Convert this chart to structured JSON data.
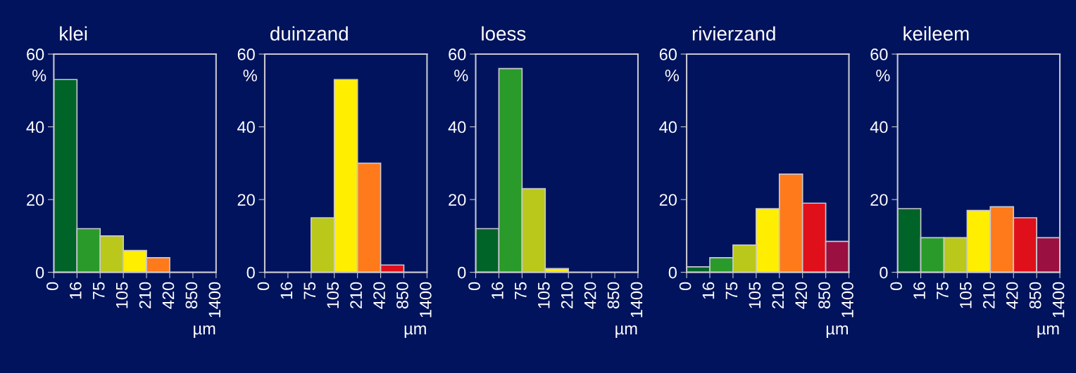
{
  "chart_data": [
    {
      "type": "bar",
      "title": "klei",
      "ylabel": "%",
      "xlabel": "µm",
      "categories": [
        "0",
        "16",
        "75",
        "105",
        "210",
        "420",
        "850",
        "1400"
      ],
      "values": [
        53,
        12,
        10,
        6,
        4,
        0,
        0,
        null
      ],
      "colors": [
        "#006428",
        "#2a9a2a",
        "#b9c81a",
        "#ffee00",
        "#ff7a1a",
        "#e0101a",
        "#9a1040",
        null
      ],
      "ylim": [
        0,
        60
      ],
      "yticks": [
        0,
        20,
        40,
        60
      ]
    },
    {
      "type": "bar",
      "title": "duinzand",
      "ylabel": "%",
      "xlabel": "µm",
      "categories": [
        "0",
        "16",
        "75",
        "105",
        "210",
        "420",
        "850",
        "1400"
      ],
      "values": [
        0,
        0,
        15,
        53,
        30,
        2,
        0,
        null
      ],
      "colors": [
        "#006428",
        "#2a9a2a",
        "#b9c81a",
        "#ffee00",
        "#ff7a1a",
        "#e0101a",
        "#9a1040",
        null
      ],
      "ylim": [
        0,
        60
      ],
      "yticks": [
        0,
        20,
        40,
        60
      ]
    },
    {
      "type": "bar",
      "title": "loess",
      "ylabel": "%",
      "xlabel": "µm",
      "categories": [
        "0",
        "16",
        "75",
        "105",
        "210",
        "420",
        "850",
        "1400"
      ],
      "values": [
        12,
        56,
        23,
        1,
        0,
        0,
        0,
        null
      ],
      "colors": [
        "#006428",
        "#2a9a2a",
        "#b9c81a",
        "#ffee00",
        "#ff7a1a",
        "#e0101a",
        "#9a1040",
        null
      ],
      "ylim": [
        0,
        60
      ],
      "yticks": [
        0,
        20,
        40,
        60
      ]
    },
    {
      "type": "bar",
      "title": "rivierzand",
      "ylabel": "%",
      "xlabel": "µm",
      "categories": [
        "0",
        "16",
        "75",
        "105",
        "210",
        "420",
        "850",
        "1400"
      ],
      "values": [
        1.5,
        4,
        7.5,
        17.5,
        27,
        19,
        8.5,
        null
      ],
      "colors": [
        "#006428",
        "#2a9a2a",
        "#b9c81a",
        "#ffee00",
        "#ff7a1a",
        "#e0101a",
        "#9a1040",
        null
      ],
      "ylim": [
        0,
        60
      ],
      "yticks": [
        0,
        20,
        40,
        60
      ]
    },
    {
      "type": "bar",
      "title": "keileem",
      "ylabel": "%",
      "xlabel": "µm",
      "categories": [
        "0",
        "16",
        "75",
        "105",
        "210",
        "420",
        "850",
        "1400"
      ],
      "values": [
        17.5,
        9.5,
        9.5,
        17,
        18,
        15,
        9.5,
        null
      ],
      "colors": [
        "#006428",
        "#2a9a2a",
        "#b9c81a",
        "#ffee00",
        "#ff7a1a",
        "#e0101a",
        "#9a1040",
        null
      ],
      "ylim": [
        0,
        60
      ],
      "yticks": [
        0,
        20,
        40,
        60
      ]
    }
  ]
}
